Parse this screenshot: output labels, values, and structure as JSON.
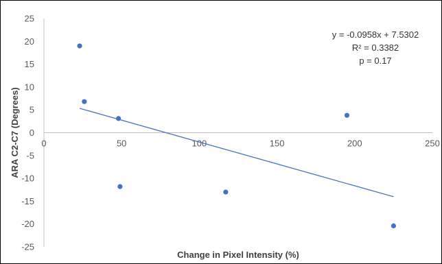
{
  "chart_data": {
    "type": "scatter",
    "title": "",
    "xlabel": "Change in Pixel Intensity (%)",
    "ylabel": "ARA C2-C7 (Degrees)",
    "xlim": [
      0,
      250
    ],
    "ylim": [
      -25,
      25
    ],
    "x_ticks": [
      0,
      50,
      100,
      150,
      200,
      250
    ],
    "y_ticks": [
      -25,
      -20,
      -15,
      -10,
      -5,
      0,
      5,
      10,
      15,
      20,
      25
    ],
    "grid": false,
    "legend": "none",
    "series": [
      {
        "points": [
          {
            "x": 23,
            "y": 19
          },
          {
            "x": 26,
            "y": 6.8
          },
          {
            "x": 48,
            "y": 3.1
          },
          {
            "x": 49,
            "y": -11.8
          },
          {
            "x": 117,
            "y": -13
          },
          {
            "x": 195,
            "y": 3.8
          },
          {
            "x": 225,
            "y": -20.4
          }
        ]
      }
    ],
    "trendline": {
      "type": "linear",
      "slope": -0.0958,
      "intercept": 7.5302,
      "x_range": [
        23,
        225
      ]
    },
    "annotations": [
      "y = -0.0958x + 7.5302",
      "R² = 0.3382",
      "p = 0.17"
    ],
    "colors": {
      "marker": "#4472c4",
      "trendline": "#4472c4",
      "axis": "#bfbfbf",
      "frame": "#000000"
    }
  }
}
